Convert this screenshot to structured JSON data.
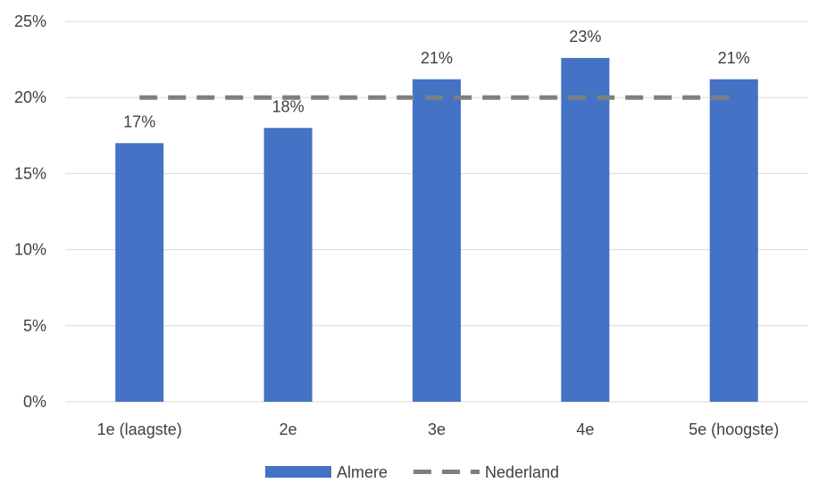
{
  "chart_data": {
    "type": "bar",
    "categories": [
      "1e (laagste)",
      "2e",
      "3e",
      "4e",
      "5e (hoogste)"
    ],
    "series": [
      {
        "name": "Almere",
        "kind": "bar",
        "color": "#4472C4",
        "values": [
          17,
          18,
          21.2,
          22.6,
          21.2
        ],
        "labels": [
          "17%",
          "18%",
          "21%",
          "23%",
          "21%"
        ]
      },
      {
        "name": "Nederland",
        "kind": "line",
        "style": "dashed",
        "color": "#7F7F7F",
        "values": [
          20,
          20,
          20,
          20,
          20
        ]
      }
    ],
    "y_ticks": [
      "0%",
      "5%",
      "10%",
      "15%",
      "20%",
      "25%"
    ],
    "y_tick_values": [
      0,
      5,
      10,
      15,
      20,
      25
    ],
    "ylim": [
      0,
      25
    ],
    "grid": true,
    "legend_position": "bottom"
  }
}
